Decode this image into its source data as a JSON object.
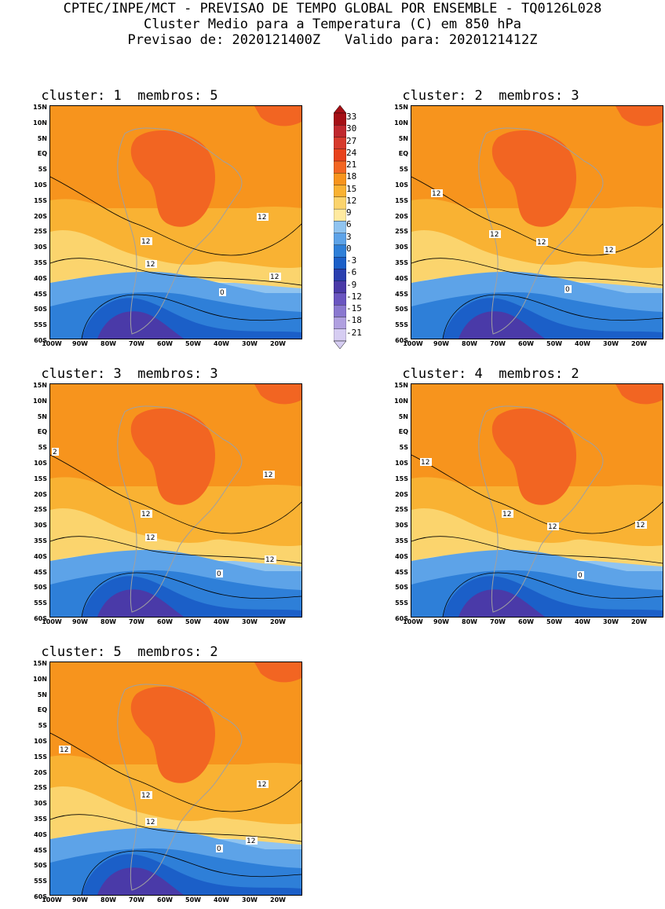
{
  "header": {
    "line1": "CPTEC/INPE/MCT - PREVISAO DE TEMPO GLOBAL POR ENSEMBLE - TQ0126L028",
    "line2": "Cluster Medio para a Temperatura (C) em 850 hPa",
    "line3": "Previsao de: 2020121400Z   Valido para: 2020121412Z"
  },
  "axes": {
    "lat_ticks": [
      "15N",
      "10N",
      "5N",
      "EQ",
      "5S",
      "10S",
      "15S",
      "20S",
      "25S",
      "30S",
      "35S",
      "40S",
      "45S",
      "50S",
      "55S",
      "60S"
    ],
    "lon_ticks": [
      "100W",
      "90W",
      "80W",
      "70W",
      "60W",
      "50W",
      "40W",
      "30W",
      "20W"
    ]
  },
  "colorbar": {
    "labels": [
      "33",
      "30",
      "27",
      "24",
      "21",
      "18",
      "15",
      "12",
      "9",
      "6",
      "3",
      "0",
      "-3",
      "-6",
      "-9",
      "-12",
      "-15",
      "-18",
      "-21"
    ],
    "colors": [
      "#a50f15",
      "#c0272d",
      "#d73a2c",
      "#e8421c",
      "#f26522",
      "#f7941d",
      "#f9b233",
      "#fbd46d",
      "#ffeaa0",
      "#90c4f0",
      "#5da3e8",
      "#2e7fd8",
      "#1b5fc8",
      "#2a3fb0",
      "#4a3aa8",
      "#6a55c0",
      "#8a78d0",
      "#b0a0e0",
      "#d6cdf2"
    ]
  },
  "panels": [
    {
      "cluster_label": "cluster:",
      "cluster": "1",
      "members_label": "membros:",
      "members": "5",
      "contour_labels": [
        "12",
        "12",
        "12",
        "12",
        "0"
      ]
    },
    {
      "cluster_label": "cluster:",
      "cluster": "2",
      "members_label": "membros:",
      "members": "3",
      "contour_labels": [
        "12",
        "12",
        "12",
        "12",
        "0"
      ]
    },
    {
      "cluster_label": "cluster:",
      "cluster": "3",
      "members_label": "membros:",
      "members": "3",
      "contour_labels": [
        "2",
        "12",
        "12",
        "12",
        "12",
        "0"
      ]
    },
    {
      "cluster_label": "cluster:",
      "cluster": "4",
      "members_label": "membros:",
      "members": "2",
      "contour_labels": [
        "12",
        "12",
        "12",
        "12",
        "0"
      ]
    },
    {
      "cluster_label": "cluster:",
      "cluster": "5",
      "members_label": "membros:",
      "members": "2",
      "contour_labels": [
        "12",
        "12",
        "12",
        "12",
        "12",
        "0"
      ]
    }
  ]
}
